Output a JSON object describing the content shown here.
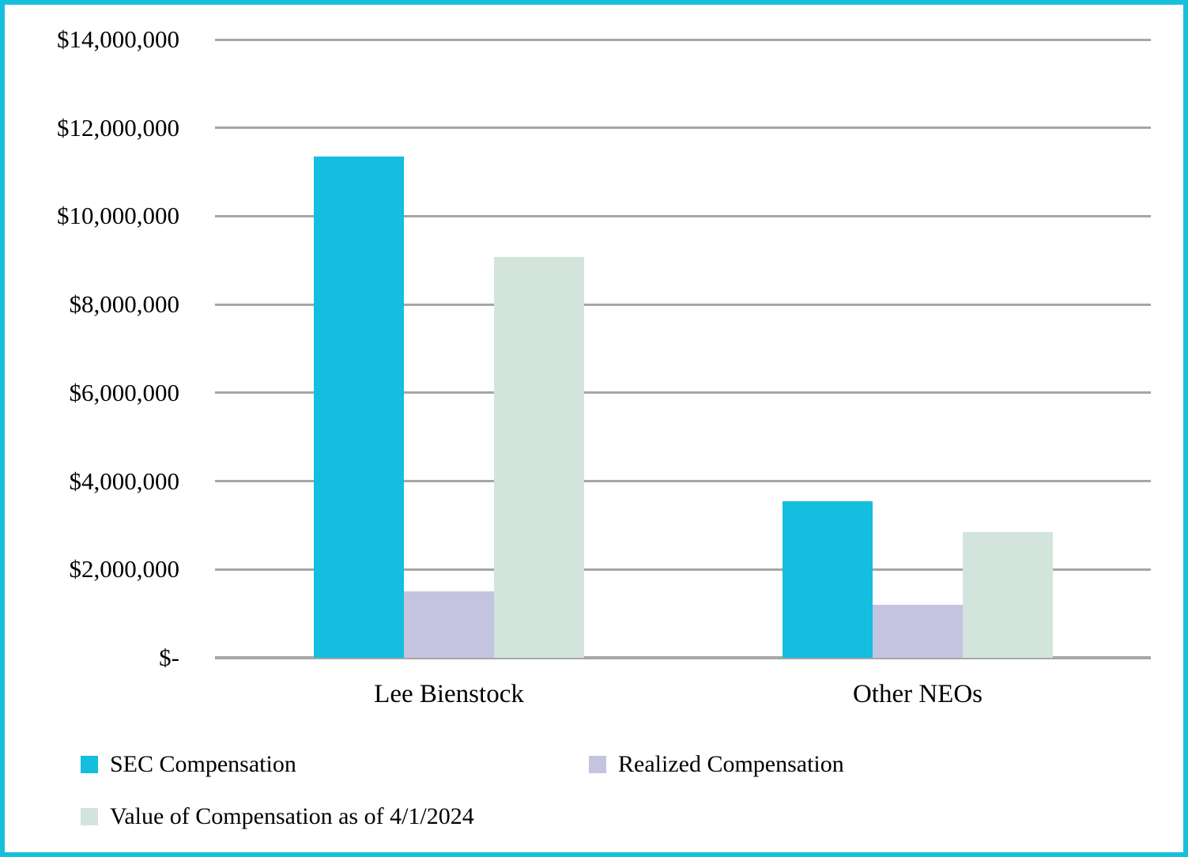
{
  "chart_data": {
    "type": "bar",
    "title": "",
    "xlabel": "",
    "ylabel": "",
    "categories": [
      "Lee Bienstock",
      "Other NEOs"
    ],
    "series": [
      {
        "name": "SEC Compensation",
        "color": "#13BEDE",
        "values": [
          11350000,
          3550000
        ]
      },
      {
        "name": "Realized Compensation",
        "color": "#C4C3E0",
        "values": [
          1500000,
          1200000
        ]
      },
      {
        "name": "Value of Compensation as of 4/1/2024",
        "color": "#D3E4DC",
        "values": [
          9080000,
          2850000
        ]
      }
    ],
    "y_ticks": [
      {
        "label": "$14,000,000",
        "value": 14000000
      },
      {
        "label": "$12,000,000",
        "value": 12000000
      },
      {
        "label": "$10,000,000",
        "value": 10000000
      },
      {
        "label": "$8,000,000",
        "value": 8000000
      },
      {
        "label": "$6,000,000",
        "value": 6000000
      },
      {
        "label": "$4,000,000",
        "value": 4000000
      },
      {
        "label": "$2,000,000",
        "value": 2000000
      },
      {
        "label": "$-",
        "value": 0
      }
    ],
    "ylim": [
      0,
      14000000
    ],
    "grid": true,
    "legend_position": "bottom",
    "colors": {
      "frame_border": "#17BFDC",
      "gridline": "#A6A6A6",
      "text": "#000000"
    }
  }
}
